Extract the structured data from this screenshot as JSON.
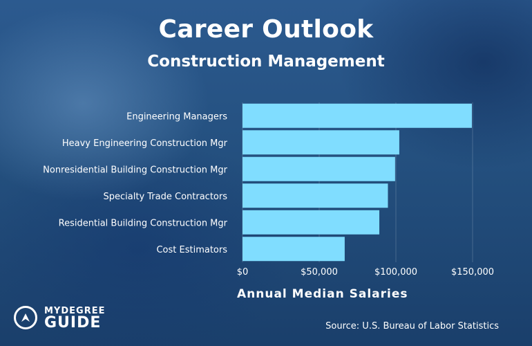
{
  "header": {
    "title": "Career Outlook",
    "subtitle": "Construction Management"
  },
  "chart_data": {
    "type": "bar",
    "orientation": "horizontal",
    "categories": [
      "Engineering Managers",
      "Heavy Engineering Construction Mgr",
      "Nonresidential Building Construction Mgr",
      "Specialty Trade Contractors",
      "Residential Building Construction Mgr",
      "Cost Estimators"
    ],
    "values": [
      149530,
      102210,
      99480,
      94800,
      89200,
      66620
    ],
    "xlabel": "Annual Median Salaries",
    "ylabel": "",
    "xlim": [
      0,
      150000
    ],
    "xticks": [
      "$0",
      "$50,000",
      "$100,000",
      "$150,000"
    ],
    "xtick_values": [
      0,
      50000,
      100000,
      150000
    ],
    "grid": true,
    "bar_color": "#80ddff"
  },
  "footer": {
    "source": "Source: U.S. Bureau of Labor Statistics",
    "logo_top": "MYDEGREE",
    "logo_bottom": "GUIDE"
  }
}
